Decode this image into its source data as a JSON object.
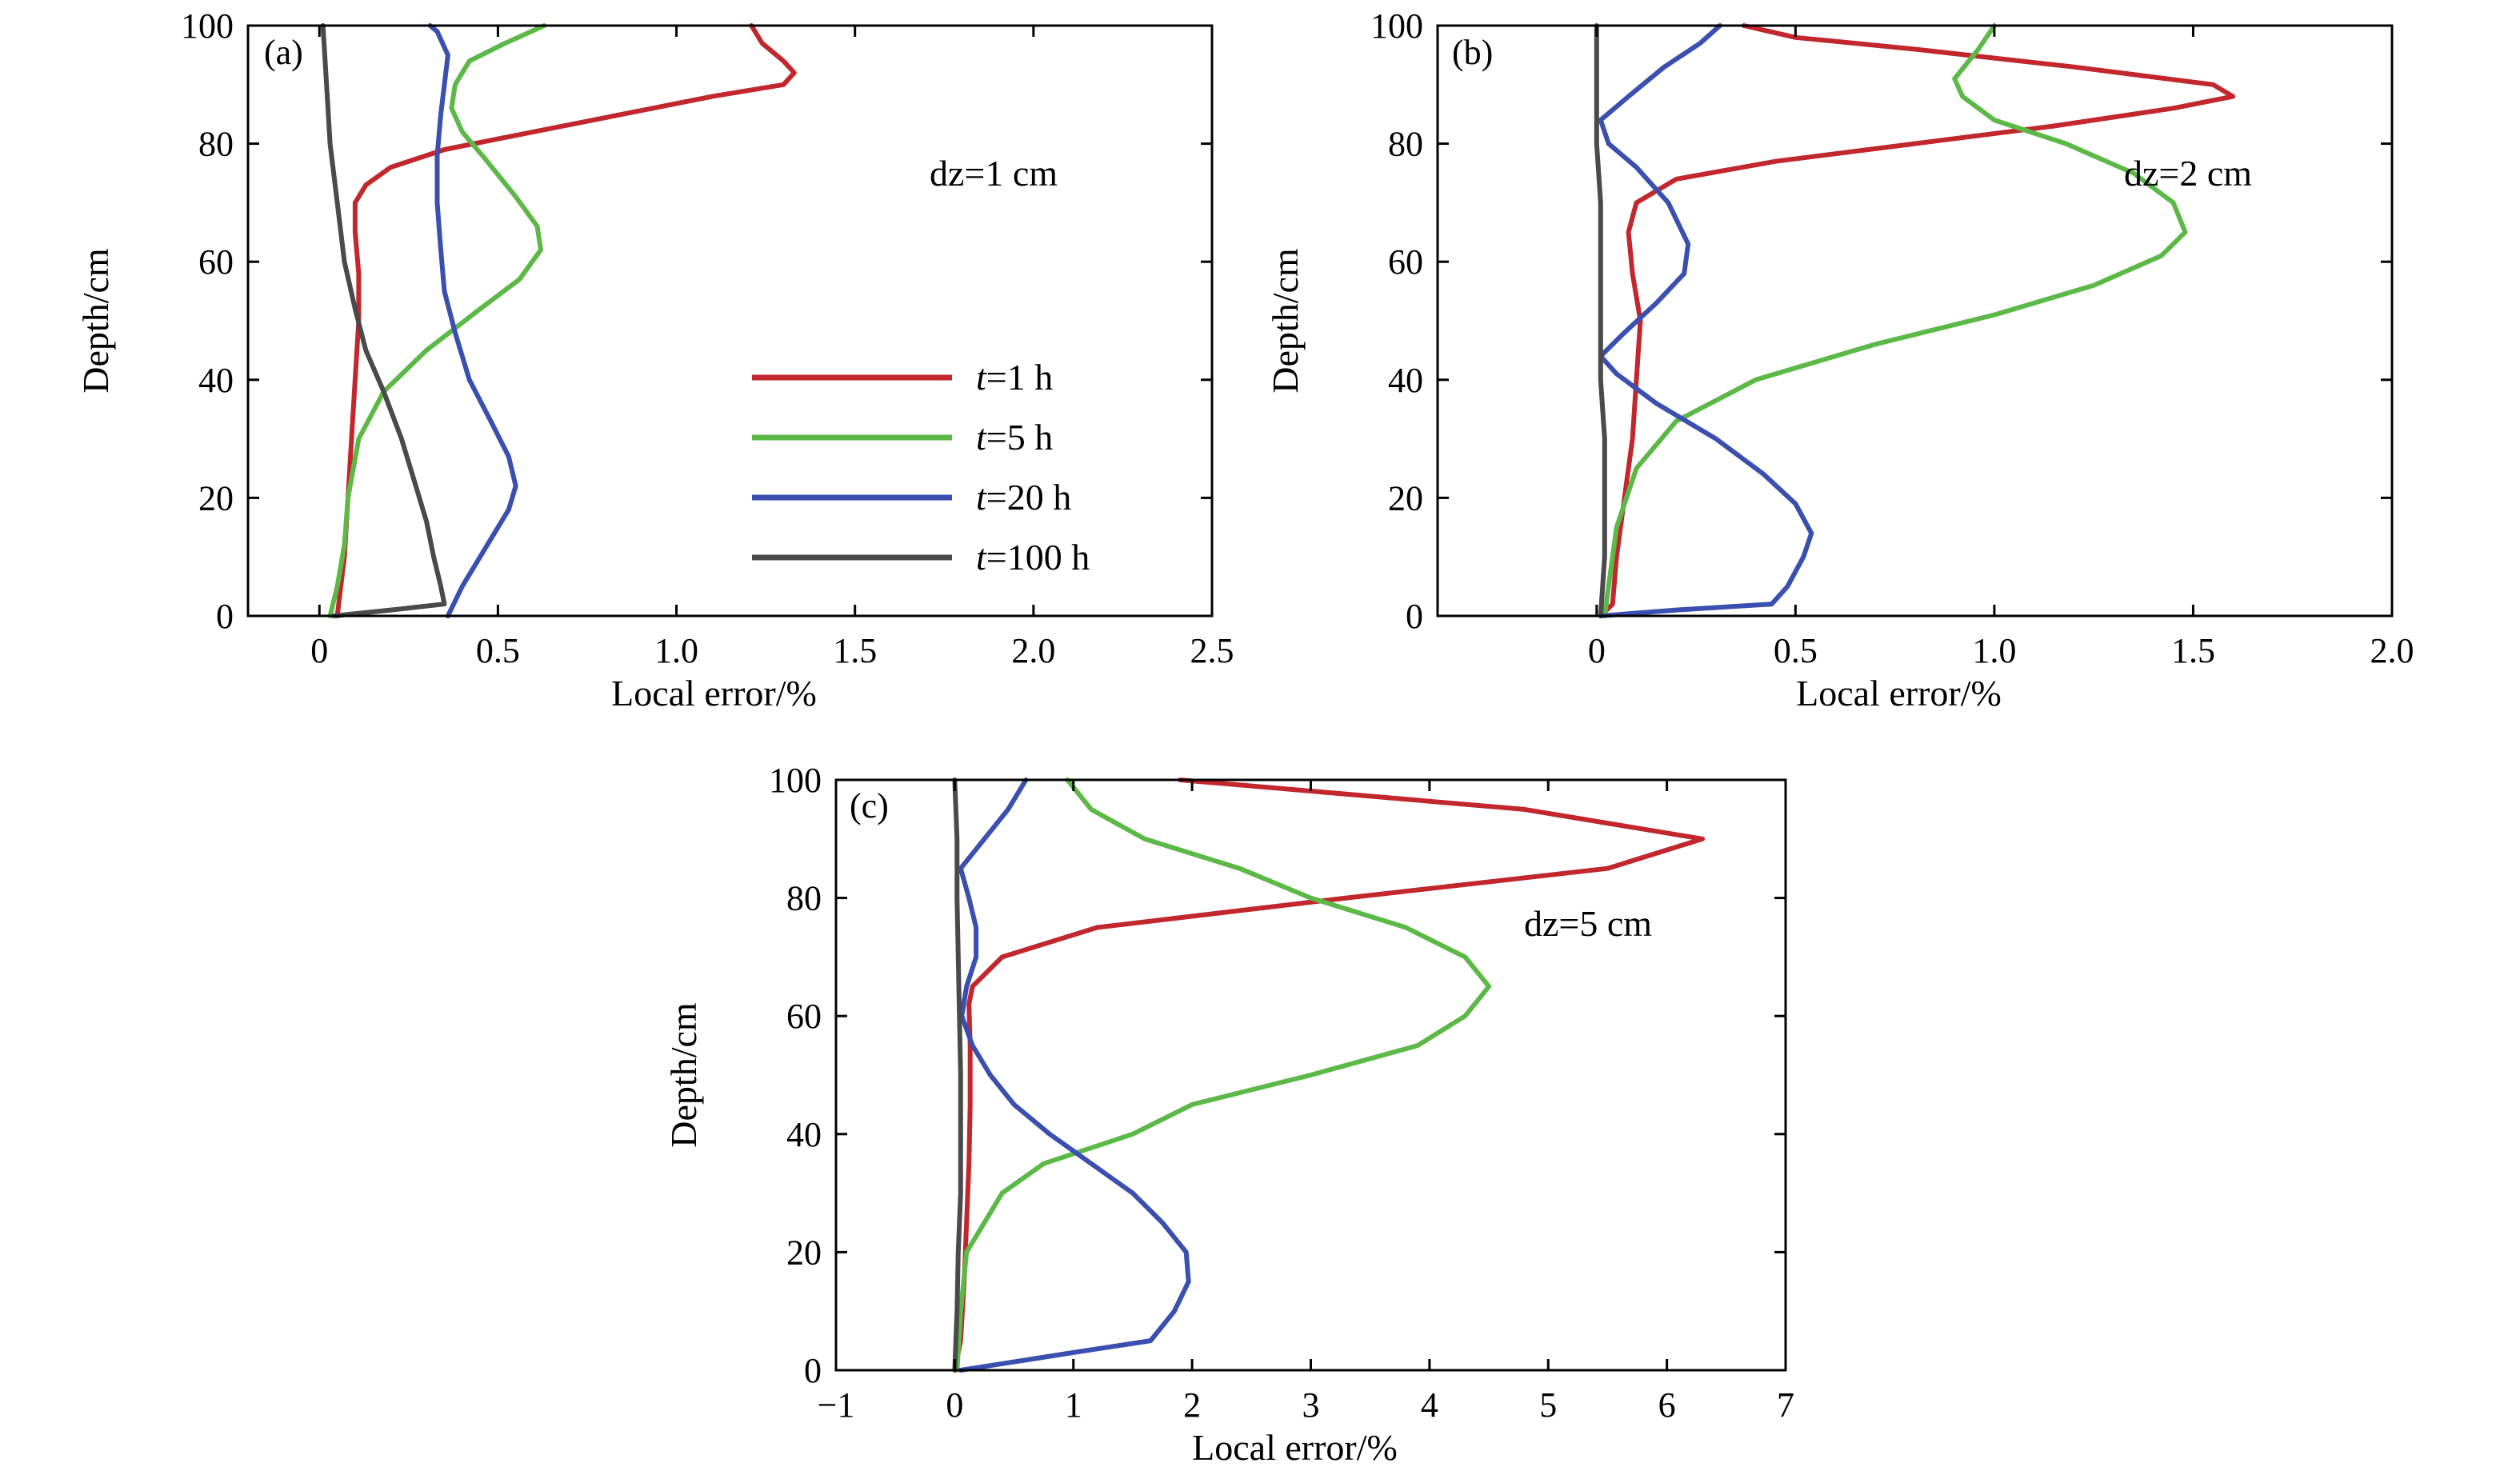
{
  "colors": {
    "t1": "#c1272d",
    "t5": "#5cb947",
    "t20": "#3a4fb0",
    "t100": "#4a4a4a"
  },
  "chart_data": [
    {
      "type": "line",
      "panel_label": "(a)",
      "annotation": "dz=1 cm",
      "xlabel": "Local error/%",
      "ylabel": "Depth/cm",
      "xlim": [
        -0.2,
        2.5
      ],
      "ylim": [
        0,
        100
      ],
      "xticks": [
        {
          "v": 0,
          "label": "0"
        },
        {
          "v": 0.5,
          "label": "0.5"
        },
        {
          "v": 1.0,
          "label": "1.0"
        },
        {
          "v": 1.5,
          "label": "1.5"
        },
        {
          "v": 2.0,
          "label": "2.0"
        },
        {
          "v": 2.5,
          "label": "2.5"
        }
      ],
      "yticks": [
        {
          "v": 0,
          "label": "0"
        },
        {
          "v": 20,
          "label": "20"
        },
        {
          "v": 40,
          "label": "40"
        },
        {
          "v": 60,
          "label": "60"
        },
        {
          "v": 80,
          "label": "80"
        },
        {
          "v": 100,
          "label": "100"
        }
      ],
      "legend": [
        {
          "italic": "t",
          "rest": "=1 h",
          "color_key": "t1"
        },
        {
          "italic": "t",
          "rest": "=5 h",
          "color_key": "t5"
        },
        {
          "italic": "t",
          "rest": "=20 h",
          "color_key": "t20"
        },
        {
          "italic": "t",
          "rest": "=100 h",
          "color_key": "t100"
        }
      ],
      "series": [
        {
          "color_key": "t1",
          "points": [
            [
              0.05,
              0
            ],
            [
              0.06,
              5
            ],
            [
              0.07,
              10
            ],
            [
              0.08,
              20
            ],
            [
              0.09,
              30
            ],
            [
              0.1,
              40
            ],
            [
              0.11,
              50
            ],
            [
              0.11,
              58
            ],
            [
              0.1,
              65
            ],
            [
              0.1,
              70
            ],
            [
              0.13,
              73
            ],
            [
              0.2,
              76
            ],
            [
              0.35,
              79
            ],
            [
              0.6,
              82
            ],
            [
              0.85,
              85
            ],
            [
              1.1,
              88
            ],
            [
              1.3,
              90
            ],
            [
              1.33,
              92
            ],
            [
              1.3,
              94
            ],
            [
              1.24,
              97
            ],
            [
              1.21,
              100
            ]
          ]
        },
        {
          "color_key": "t5",
          "points": [
            [
              0.03,
              0
            ],
            [
              0.05,
              5
            ],
            [
              0.07,
              12
            ],
            [
              0.08,
              20
            ],
            [
              0.11,
              30
            ],
            [
              0.18,
              38
            ],
            [
              0.3,
              45
            ],
            [
              0.45,
              52
            ],
            [
              0.56,
              57
            ],
            [
              0.62,
              62
            ],
            [
              0.61,
              66
            ],
            [
              0.55,
              71
            ],
            [
              0.47,
              77
            ],
            [
              0.4,
              82
            ],
            [
              0.37,
              86
            ],
            [
              0.38,
              90
            ],
            [
              0.42,
              94
            ],
            [
              0.52,
              97
            ],
            [
              0.63,
              100
            ]
          ]
        },
        {
          "color_key": "t20",
          "points": [
            [
              0.36,
              0
            ],
            [
              0.4,
              5
            ],
            [
              0.47,
              12
            ],
            [
              0.53,
              18
            ],
            [
              0.55,
              22
            ],
            [
              0.53,
              27
            ],
            [
              0.48,
              33
            ],
            [
              0.42,
              40
            ],
            [
              0.38,
              48
            ],
            [
              0.35,
              55
            ],
            [
              0.34,
              62
            ],
            [
              0.33,
              70
            ],
            [
              0.33,
              78
            ],
            [
              0.34,
              85
            ],
            [
              0.35,
              90
            ],
            [
              0.36,
              95
            ],
            [
              0.33,
              99
            ],
            [
              0.31,
              100
            ]
          ]
        },
        {
          "color_key": "t100",
          "points": [
            [
              0.04,
              0
            ],
            [
              0.2,
              1
            ],
            [
              0.35,
              2
            ],
            [
              0.34,
              5
            ],
            [
              0.32,
              10
            ],
            [
              0.3,
              16
            ],
            [
              0.27,
              22
            ],
            [
              0.23,
              30
            ],
            [
              0.18,
              38
            ],
            [
              0.13,
              45
            ],
            [
              0.1,
              52
            ],
            [
              0.07,
              60
            ],
            [
              0.05,
              70
            ],
            [
              0.03,
              80
            ],
            [
              0.02,
              90
            ],
            [
              0.01,
              100
            ]
          ]
        }
      ]
    },
    {
      "type": "line",
      "panel_label": "(b)",
      "annotation": "dz=2 cm",
      "xlabel": "Local error/%",
      "ylabel": "Depth/cm",
      "xlim": [
        -0.4,
        2.0
      ],
      "ylim": [
        0,
        100
      ],
      "xticks": [
        {
          "v": 0,
          "label": "0"
        },
        {
          "v": 0.5,
          "label": "0.5"
        },
        {
          "v": 1.0,
          "label": "1.0"
        },
        {
          "v": 1.5,
          "label": "1.5"
        },
        {
          "v": 2.0,
          "label": "2.0"
        }
      ],
      "yticks": [
        {
          "v": 0,
          "label": "0"
        },
        {
          "v": 20,
          "label": "20"
        },
        {
          "v": 40,
          "label": "40"
        },
        {
          "v": 60,
          "label": "60"
        },
        {
          "v": 80,
          "label": "80"
        },
        {
          "v": 100,
          "label": "100"
        }
      ],
      "legend": [],
      "series": [
        {
          "color_key": "t1",
          "points": [
            [
              0.01,
              0
            ],
            [
              0.04,
              2
            ],
            [
              0.05,
              10
            ],
            [
              0.07,
              20
            ],
            [
              0.09,
              30
            ],
            [
              0.1,
              40
            ],
            [
              0.11,
              50
            ],
            [
              0.09,
              58
            ],
            [
              0.08,
              65
            ],
            [
              0.1,
              70
            ],
            [
              0.2,
              74
            ],
            [
              0.45,
              77
            ],
            [
              0.8,
              80
            ],
            [
              1.15,
              83
            ],
            [
              1.45,
              86
            ],
            [
              1.6,
              88
            ],
            [
              1.55,
              90
            ],
            [
              1.2,
              93
            ],
            [
              0.8,
              96
            ],
            [
              0.5,
              98
            ],
            [
              0.37,
              100
            ]
          ]
        },
        {
          "color_key": "t5",
          "points": [
            [
              0.02,
              0
            ],
            [
              0.03,
              5
            ],
            [
              0.05,
              15
            ],
            [
              0.1,
              25
            ],
            [
              0.2,
              33
            ],
            [
              0.4,
              40
            ],
            [
              0.7,
              46
            ],
            [
              1.0,
              51
            ],
            [
              1.25,
              56
            ],
            [
              1.42,
              61
            ],
            [
              1.48,
              65
            ],
            [
              1.45,
              70
            ],
            [
              1.35,
              75
            ],
            [
              1.18,
              80
            ],
            [
              1.0,
              84
            ],
            [
              0.92,
              88
            ],
            [
              0.9,
              91
            ],
            [
              0.96,
              96
            ],
            [
              0.99,
              99
            ],
            [
              1.0,
              100
            ]
          ]
        },
        {
          "color_key": "t20",
          "points": [
            [
              0.01,
              0
            ],
            [
              0.2,
              1
            ],
            [
              0.44,
              2
            ],
            [
              0.48,
              5
            ],
            [
              0.52,
              10
            ],
            [
              0.54,
              14
            ],
            [
              0.5,
              19
            ],
            [
              0.42,
              24
            ],
            [
              0.3,
              30
            ],
            [
              0.15,
              36
            ],
            [
              0.05,
              41
            ],
            [
              0.01,
              44
            ],
            [
              0.07,
              48
            ],
            [
              0.15,
              53
            ],
            [
              0.22,
              58
            ],
            [
              0.23,
              63
            ],
            [
              0.18,
              70
            ],
            [
              0.1,
              76
            ],
            [
              0.03,
              80
            ],
            [
              0.01,
              84
            ],
            [
              0.08,
              88
            ],
            [
              0.17,
              93
            ],
            [
              0.26,
              97
            ],
            [
              0.31,
              100
            ]
          ]
        },
        {
          "color_key": "t100",
          "points": [
            [
              0.01,
              0
            ],
            [
              0.02,
              10
            ],
            [
              0.02,
              20
            ],
            [
              0.02,
              30
            ],
            [
              0.01,
              40
            ],
            [
              0.01,
              50
            ],
            [
              0.01,
              60
            ],
            [
              0.01,
              70
            ],
            [
              0.0,
              80
            ],
            [
              0.0,
              90
            ],
            [
              0.0,
              100
            ]
          ]
        }
      ]
    },
    {
      "type": "line",
      "panel_label": "(c)",
      "annotation": "dz=5 cm",
      "xlabel": "Local error/%",
      "ylabel": "Depth/cm",
      "xlim": [
        -1,
        7
      ],
      "ylim": [
        0,
        100
      ],
      "xticks": [
        {
          "v": -1,
          "label": "−1"
        },
        {
          "v": 0,
          "label": "0"
        },
        {
          "v": 1,
          "label": "1"
        },
        {
          "v": 2,
          "label": "2"
        },
        {
          "v": 3,
          "label": "3"
        },
        {
          "v": 4,
          "label": "4"
        },
        {
          "v": 5,
          "label": "5"
        },
        {
          "v": 6,
          "label": "6"
        },
        {
          "v": 7,
          "label": "7"
        }
      ],
      "yticks": [
        {
          "v": 0,
          "label": "0"
        },
        {
          "v": 20,
          "label": "20"
        },
        {
          "v": 40,
          "label": "40"
        },
        {
          "v": 60,
          "label": "60"
        },
        {
          "v": 80,
          "label": "80"
        },
        {
          "v": 100,
          "label": "100"
        }
      ],
      "legend": [],
      "series": [
        {
          "color_key": "t1",
          "points": [
            [
              0.0,
              0
            ],
            [
              0.05,
              5
            ],
            [
              0.08,
              15
            ],
            [
              0.1,
              25
            ],
            [
              0.12,
              35
            ],
            [
              0.13,
              45
            ],
            [
              0.13,
              55
            ],
            [
              0.12,
              62
            ],
            [
              0.15,
              65
            ],
            [
              0.4,
              70
            ],
            [
              1.2,
              75
            ],
            [
              3.3,
              80
            ],
            [
              5.5,
              85
            ],
            [
              6.3,
              90
            ],
            [
              4.8,
              95
            ],
            [
              1.9,
              100
            ]
          ]
        },
        {
          "color_key": "t5",
          "points": [
            [
              0.02,
              0
            ],
            [
              0.05,
              10
            ],
            [
              0.1,
              20
            ],
            [
              0.4,
              30
            ],
            [
              0.75,
              35
            ],
            [
              1.5,
              40
            ],
            [
              2.0,
              45
            ],
            [
              3.0,
              50
            ],
            [
              3.9,
              55
            ],
            [
              4.3,
              60
            ],
            [
              4.5,
              65
            ],
            [
              4.3,
              70
            ],
            [
              3.8,
              75
            ],
            [
              3.0,
              80
            ],
            [
              2.4,
              85
            ],
            [
              1.6,
              90
            ],
            [
              1.15,
              95
            ],
            [
              0.95,
              100
            ]
          ]
        },
        {
          "color_key": "t20",
          "points": [
            [
              0.05,
              0
            ],
            [
              1.0,
              3
            ],
            [
              1.65,
              5
            ],
            [
              1.85,
              10
            ],
            [
              1.97,
              15
            ],
            [
              1.95,
              20
            ],
            [
              1.75,
              25
            ],
            [
              1.5,
              30
            ],
            [
              1.15,
              35
            ],
            [
              0.8,
              40
            ],
            [
              0.5,
              45
            ],
            [
              0.3,
              50
            ],
            [
              0.15,
              55
            ],
            [
              0.06,
              60
            ],
            [
              0.1,
              65
            ],
            [
              0.18,
              70
            ],
            [
              0.18,
              75
            ],
            [
              0.12,
              80
            ],
            [
              0.05,
              85
            ],
            [
              0.25,
              90
            ],
            [
              0.45,
              95
            ],
            [
              0.6,
              100
            ]
          ]
        },
        {
          "color_key": "t100",
          "points": [
            [
              0.0,
              0
            ],
            [
              0.02,
              10
            ],
            [
              0.03,
              20
            ],
            [
              0.05,
              30
            ],
            [
              0.05,
              40
            ],
            [
              0.05,
              50
            ],
            [
              0.04,
              60
            ],
            [
              0.03,
              70
            ],
            [
              0.02,
              80
            ],
            [
              0.02,
              90
            ],
            [
              0.0,
              100
            ]
          ]
        }
      ]
    }
  ]
}
